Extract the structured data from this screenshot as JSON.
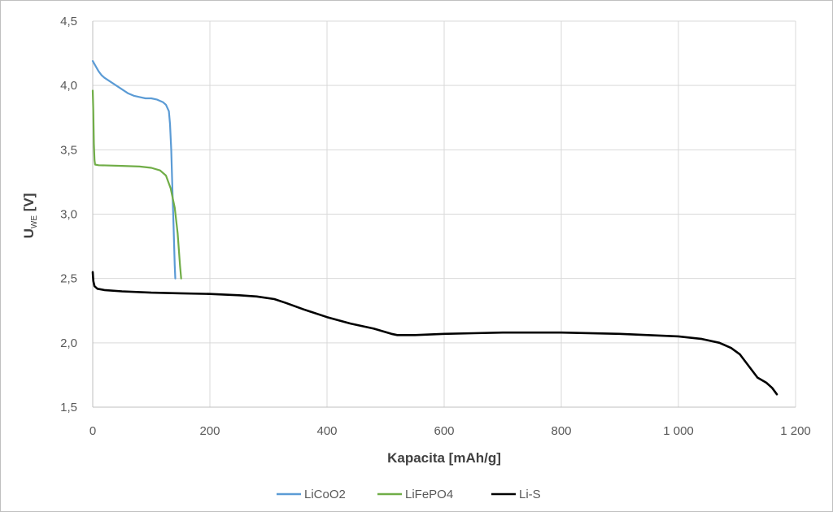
{
  "chart_data": {
    "type": "line",
    "xlabel": "Kapacita [mAh/g]",
    "ylabel": {
      "main": "U",
      "subscript": "WE",
      "suffix": " [V]"
    },
    "xlim": [
      0,
      1200
    ],
    "ylim": [
      1.5,
      4.5
    ],
    "x_ticks": [
      {
        "value": 0,
        "label": "0"
      },
      {
        "value": 200,
        "label": "200"
      },
      {
        "value": 400,
        "label": "400"
      },
      {
        "value": 600,
        "label": "600"
      },
      {
        "value": 800,
        "label": "800"
      },
      {
        "value": 1000,
        "label": "1 000"
      },
      {
        "value": 1200,
        "label": "1 200"
      }
    ],
    "y_ticks": [
      {
        "value": 1.5,
        "label": "1,5"
      },
      {
        "value": 2.0,
        "label": "2,0"
      },
      {
        "value": 2.5,
        "label": "2,5"
      },
      {
        "value": 3.0,
        "label": "3,0"
      },
      {
        "value": 3.5,
        "label": "3,5"
      },
      {
        "value": 4.0,
        "label": "4,0"
      },
      {
        "value": 4.5,
        "label": "4,5"
      }
    ],
    "grid": true,
    "legend_position": "bottom",
    "series": [
      {
        "name": "LiCoO2",
        "color": "#5b9bd5",
        "points": [
          [
            0,
            4.19
          ],
          [
            5,
            4.15
          ],
          [
            10,
            4.11
          ],
          [
            15,
            4.08
          ],
          [
            20,
            4.06
          ],
          [
            30,
            4.03
          ],
          [
            40,
            4.0
          ],
          [
            50,
            3.97
          ],
          [
            60,
            3.94
          ],
          [
            70,
            3.92
          ],
          [
            80,
            3.91
          ],
          [
            90,
            3.9
          ],
          [
            100,
            3.9
          ],
          [
            110,
            3.89
          ],
          [
            120,
            3.87
          ],
          [
            125,
            3.85
          ],
          [
            130,
            3.8
          ],
          [
            132,
            3.7
          ],
          [
            134,
            3.5
          ],
          [
            136,
            3.2
          ],
          [
            138,
            2.9
          ],
          [
            140,
            2.6
          ],
          [
            141,
            2.5
          ]
        ]
      },
      {
        "name": "LiFePO4",
        "color": "#70ad47",
        "points": [
          [
            0,
            3.96
          ],
          [
            1,
            3.8
          ],
          [
            2,
            3.55
          ],
          [
            3,
            3.42
          ],
          [
            4,
            3.385
          ],
          [
            10,
            3.38
          ],
          [
            50,
            3.375
          ],
          [
            80,
            3.37
          ],
          [
            100,
            3.36
          ],
          [
            115,
            3.34
          ],
          [
            125,
            3.3
          ],
          [
            133,
            3.2
          ],
          [
            140,
            3.05
          ],
          [
            145,
            2.85
          ],
          [
            149,
            2.6
          ],
          [
            151,
            2.5
          ]
        ]
      },
      {
        "name": "Li-S",
        "color": "#000000",
        "points": [
          [
            0,
            2.55
          ],
          [
            1,
            2.48
          ],
          [
            3,
            2.44
          ],
          [
            8,
            2.42
          ],
          [
            20,
            2.41
          ],
          [
            50,
            2.4
          ],
          [
            100,
            2.39
          ],
          [
            150,
            2.385
          ],
          [
            200,
            2.38
          ],
          [
            250,
            2.37
          ],
          [
            280,
            2.36
          ],
          [
            310,
            2.34
          ],
          [
            330,
            2.31
          ],
          [
            360,
            2.26
          ],
          [
            400,
            2.2
          ],
          [
            440,
            2.15
          ],
          [
            480,
            2.11
          ],
          [
            510,
            2.07
          ],
          [
            520,
            2.06
          ],
          [
            550,
            2.06
          ],
          [
            600,
            2.07
          ],
          [
            650,
            2.075
          ],
          [
            700,
            2.08
          ],
          [
            800,
            2.08
          ],
          [
            900,
            2.07
          ],
          [
            1000,
            2.05
          ],
          [
            1040,
            2.03
          ],
          [
            1070,
            2.0
          ],
          [
            1090,
            1.96
          ],
          [
            1105,
            1.91
          ],
          [
            1115,
            1.85
          ],
          [
            1125,
            1.79
          ],
          [
            1135,
            1.73
          ],
          [
            1150,
            1.69
          ],
          [
            1160,
            1.65
          ],
          [
            1168,
            1.6
          ]
        ]
      }
    ]
  }
}
